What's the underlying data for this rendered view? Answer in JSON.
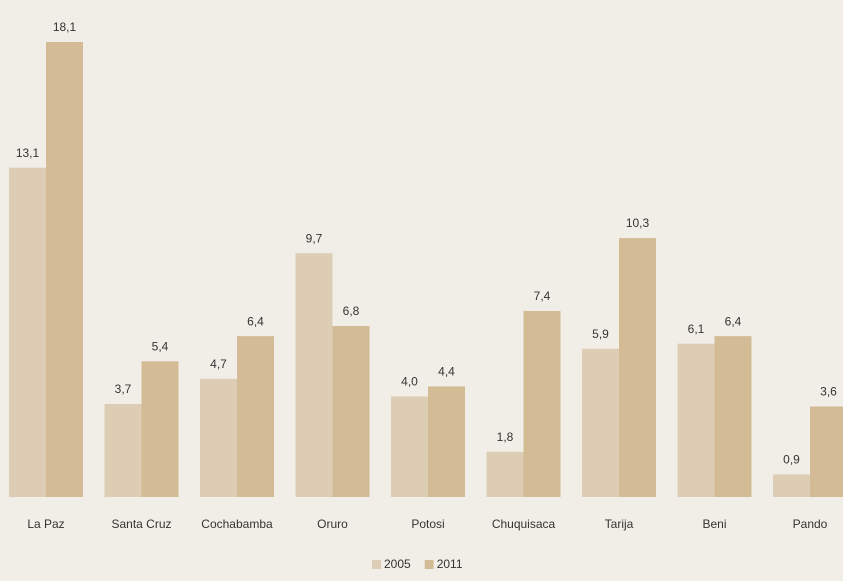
{
  "chart_data": {
    "type": "bar",
    "categories": [
      "La Paz",
      "Santa Cruz",
      "Cochabamba",
      "Oruro",
      "Potosi",
      "Chuquisaca",
      "Tarija",
      "Beni",
      "Pando"
    ],
    "series": [
      {
        "name": "2005",
        "color": "#dccdb4",
        "values": [
          13.1,
          3.7,
          4.7,
          9.7,
          4.0,
          1.8,
          5.9,
          6.1,
          0.9
        ],
        "value_labels": [
          "13,1",
          "3,7",
          "4,7",
          "9,7",
          "4,0",
          "1,8",
          "5,9",
          "6,1",
          "0,9"
        ]
      },
      {
        "name": "2011",
        "color": "#d3bc95",
        "values": [
          18.1,
          5.4,
          6.4,
          6.8,
          4.4,
          7.4,
          10.3,
          6.4,
          3.6
        ],
        "value_labels": [
          "18,1",
          "5,4",
          "6,4",
          "6,8",
          "4,4",
          "7,4",
          "10,3",
          "6,4",
          "3,6"
        ]
      }
    ],
    "legend": "bottom"
  }
}
